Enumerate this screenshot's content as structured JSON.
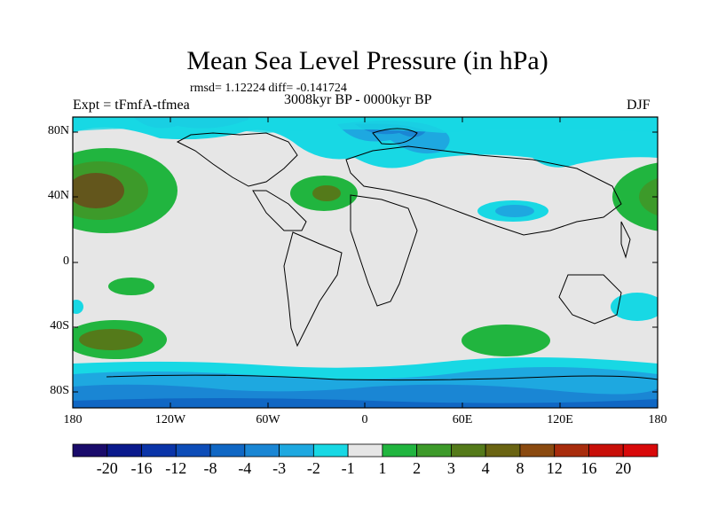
{
  "title": "Mean Sea Level Pressure (in hPa)",
  "stats": "rmsd= 1.12224  diff= -0.141724",
  "experiment": "Expt = tFmfA-tfmea",
  "period": "3008kyr BP - 0000kyr BP",
  "season": "DJF",
  "lat_ticks": [
    "80N",
    "40N",
    "0",
    "40S",
    "80S"
  ],
  "lon_ticks": [
    "180",
    "120W",
    "60W",
    "0",
    "60E",
    "120E",
    "180"
  ],
  "colorbar": {
    "labels": [
      "-20",
      "-16",
      "-12",
      "-8",
      "-4",
      "-3",
      "-2",
      "-1",
      "1",
      "2",
      "3",
      "4",
      "8",
      "12",
      "16",
      "20"
    ],
    "colors": [
      "#1a0b6b",
      "#0a1a8c",
      "#0a34a8",
      "#0d4db8",
      "#1067c4",
      "#1a86d4",
      "#1ea8e0",
      "#18d8e4",
      "#e6e6e6",
      "#21b53f",
      "#3d9a2a",
      "#547a1a",
      "#6a6412",
      "#8a4a10",
      "#a82c0c",
      "#c80f08",
      "#d8090a"
    ]
  },
  "colors": {
    "neutral": "#e6e6e6",
    "light_blue": "#18d8e4",
    "sky_blue": "#1ea8e0",
    "mid_blue": "#1a86d4",
    "deep_blue": "#1067c4",
    "green": "#21b53f",
    "dark_green": "#3d9a2a",
    "olive": "#547a1a",
    "brown": "#6a4a1a"
  }
}
